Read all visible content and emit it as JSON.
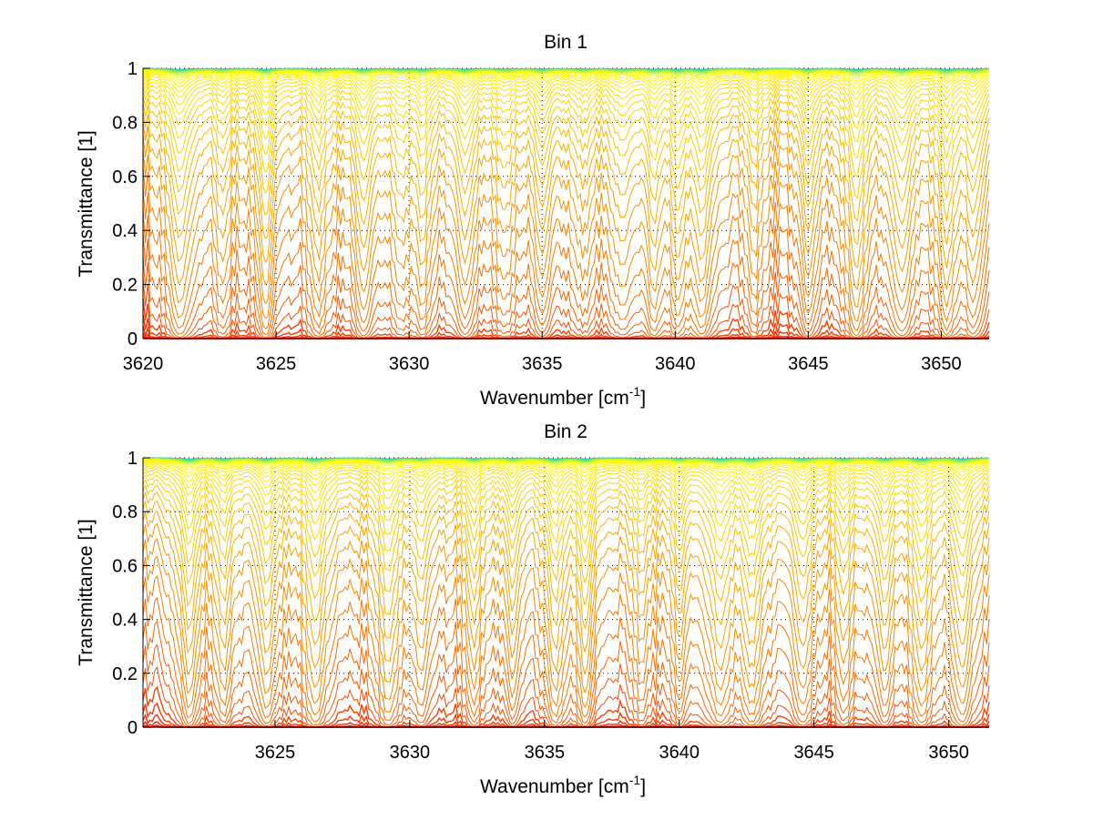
{
  "chart_data": [
    {
      "type": "line",
      "title": "Bin 1",
      "xlabel": "Wavenumber [cm",
      "xlabel_sup": "-1",
      "xlabel_end": "]",
      "ylabel": "Transmittance [1]",
      "xlim": [
        3620,
        3651.8
      ],
      "ylim": [
        0,
        1
      ],
      "xticks": [
        3620,
        3625,
        3630,
        3635,
        3640,
        3645,
        3650
      ],
      "xtick_labels": [
        "3620",
        "3625",
        "3630",
        "3635",
        "3640",
        "3645",
        "3650"
      ],
      "yticks": [
        0,
        0.2,
        0.4,
        0.6,
        0.8,
        1
      ],
      "ytick_labels": [
        "0",
        "0.2",
        "0.4",
        "0.6",
        "0.8",
        "1"
      ],
      "grid": true,
      "series_count": 40,
      "colormap": [
        "#ff0000",
        "#ff6a00",
        "#ffd200",
        "#ffff00",
        "#00c8c8"
      ],
      "absorption_lines": [
        3621.4,
        3623.0,
        3624.6,
        3626.6,
        3628.3,
        3629.7,
        3630.5,
        3632.1,
        3633.6,
        3635.0,
        3636.5,
        3638.0,
        3639.2,
        3640.1,
        3641.0,
        3643.0,
        3645.0,
        3646.8,
        3648.5,
        3650.2,
        3651.2
      ]
    },
    {
      "type": "line",
      "title": "Bin 2",
      "xlabel": "Wavenumber [cm",
      "xlabel_sup": "-1",
      "xlabel_end": "]",
      "ylabel": "Transmittance [1]",
      "xlim": [
        3620.1,
        3651.5
      ],
      "ylim": [
        0,
        1
      ],
      "xticks": [
        3625,
        3630,
        3635,
        3640,
        3645,
        3650
      ],
      "xtick_labels": [
        "3625",
        "3630",
        "3635",
        "3640",
        "3645",
        "3650"
      ],
      "yticks": [
        0,
        0.2,
        0.4,
        0.6,
        0.8,
        1
      ],
      "ytick_labels": [
        "0",
        "0.2",
        "0.4",
        "0.6",
        "0.8",
        "1"
      ],
      "grid": true,
      "series_count": 40,
      "colormap": [
        "#ff0000",
        "#ff6a00",
        "#ffd200",
        "#ffff00",
        "#00c8c8"
      ],
      "absorption_lines": [
        3621.8,
        3623.1,
        3624.7,
        3626.5,
        3629.2,
        3630.4,
        3632.4,
        3633.8,
        3635.4,
        3636.5,
        3638.6,
        3640.0,
        3641.5,
        3642.7,
        3644.6,
        3646.1,
        3647.6,
        3649.0,
        3650.5
      ]
    }
  ]
}
